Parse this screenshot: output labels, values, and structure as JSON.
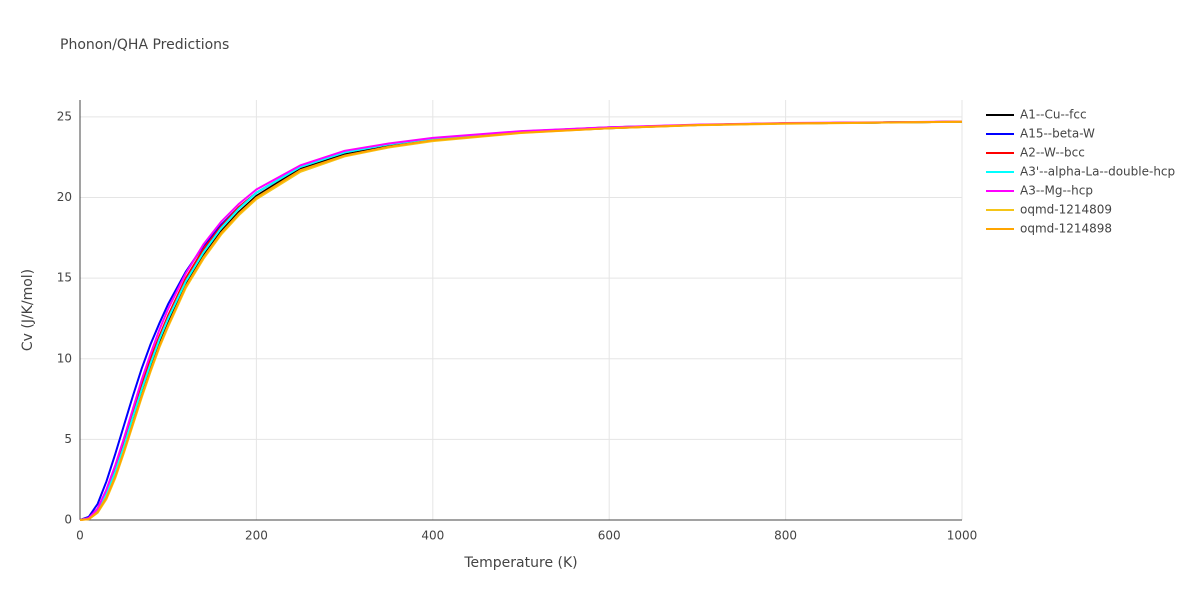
{
  "chart_data": {
    "type": "line",
    "title": "Phonon/QHA Predictions",
    "x_label": "Temperature (K)",
    "y_label": "Cv (J/K/mol)",
    "x": [
      0,
      10,
      20,
      30,
      40,
      50,
      60,
      70,
      80,
      90,
      100,
      120,
      140,
      160,
      180,
      200,
      250,
      300,
      350,
      400,
      500,
      600,
      700,
      800,
      900,
      1000
    ],
    "series": [
      {
        "name": "A1--Cu--fcc",
        "color": "#000000",
        "values": [
          0,
          0.1,
          0.6,
          1.6,
          3.0,
          4.6,
          6.3,
          8.0,
          9.6,
          11.0,
          12.3,
          14.6,
          16.4,
          17.9,
          19.1,
          20.1,
          21.8,
          22.7,
          23.2,
          23.6,
          24.05,
          24.3,
          24.5,
          24.6,
          24.65,
          24.7
        ]
      },
      {
        "name": "A15--beta-W",
        "color": "#0000ff",
        "values": [
          0,
          0.2,
          1.0,
          2.4,
          4.1,
          5.9,
          7.7,
          9.4,
          10.9,
          12.2,
          13.4,
          15.4,
          17.0,
          18.3,
          19.4,
          20.3,
          21.9,
          22.8,
          23.3,
          23.65,
          24.1,
          24.35,
          24.5,
          24.6,
          24.65,
          24.7
        ]
      },
      {
        "name": "A2--W--bcc",
        "color": "#ff0000",
        "values": [
          0,
          0.12,
          0.7,
          1.8,
          3.3,
          5.0,
          6.7,
          8.4,
          10.0,
          11.4,
          12.7,
          15.0,
          16.8,
          18.2,
          19.4,
          20.3,
          21.9,
          22.8,
          23.3,
          23.65,
          24.1,
          24.35,
          24.5,
          24.6,
          24.65,
          24.7
        ]
      },
      {
        "name": "A3'--alpha-La--double-hcp",
        "color": "#00ffff",
        "values": [
          0,
          0.1,
          0.6,
          1.6,
          3.0,
          4.6,
          6.4,
          8.1,
          9.7,
          11.2,
          12.5,
          14.8,
          16.6,
          18.1,
          19.3,
          20.3,
          21.9,
          22.8,
          23.3,
          23.65,
          24.1,
          24.35,
          24.5,
          24.6,
          24.65,
          24.7
        ]
      },
      {
        "name": "A3--Mg--hcp",
        "color": "#ff00ff",
        "values": [
          0,
          0.12,
          0.7,
          1.9,
          3.4,
          5.1,
          6.9,
          8.7,
          10.3,
          11.8,
          13.1,
          15.3,
          17.1,
          18.5,
          19.6,
          20.5,
          22.0,
          22.9,
          23.35,
          23.7,
          24.12,
          24.36,
          24.52,
          24.62,
          24.66,
          24.72
        ]
      },
      {
        "name": "oqmd-1214809",
        "color": "#f5c518",
        "values": [
          0,
          0.05,
          0.45,
          1.3,
          2.6,
          4.2,
          5.9,
          7.6,
          9.2,
          10.7,
          12.0,
          14.4,
          16.2,
          17.7,
          18.9,
          19.9,
          21.6,
          22.55,
          23.1,
          23.5,
          24.0,
          24.3,
          24.48,
          24.58,
          24.64,
          24.7
        ]
      },
      {
        "name": "oqmd-1214898",
        "color": "#ffa500",
        "values": [
          0,
          0.05,
          0.5,
          1.4,
          2.7,
          4.3,
          6.0,
          7.7,
          9.3,
          10.8,
          12.1,
          14.5,
          16.3,
          17.8,
          19.0,
          20.0,
          21.7,
          22.6,
          23.15,
          23.55,
          24.02,
          24.3,
          24.5,
          24.6,
          24.65,
          24.7
        ]
      }
    ],
    "xlim": [
      0,
      1000
    ],
    "xticks": [
      0,
      200,
      400,
      600,
      800,
      1000
    ],
    "ylim": [
      0,
      26.05
    ],
    "yticks": [
      0,
      5,
      10,
      15,
      20,
      25
    ],
    "grid": true
  }
}
